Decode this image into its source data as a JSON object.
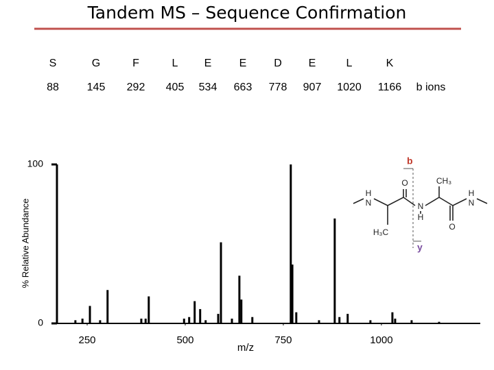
{
  "chart_data": {
    "type": "stem",
    "title": "Tandem MS – Sequence Confirmation",
    "x_label": "m/z",
    "y_label": "% Relative Abundance",
    "xlim": [
      173,
      1252
    ],
    "xticks": [
      250,
      500,
      750,
      1000
    ],
    "ylim": [
      0,
      100
    ],
    "yticks": [
      0,
      100
    ],
    "color": "#000000",
    "x": [
      220,
      238,
      257,
      283,
      302,
      388,
      399,
      407,
      497,
      510,
      524,
      538,
      552,
      584,
      591,
      619,
      638,
      643,
      671,
      769,
      773,
      783,
      841,
      881,
      893,
      914,
      972,
      1028,
      1035,
      1077,
      1147
    ],
    "values": [
      2,
      3,
      11,
      2,
      21,
      3,
      3,
      17,
      3,
      4,
      14,
      9,
      2,
      6,
      51,
      3,
      30,
      15,
      4,
      100,
      37,
      7,
      2,
      66,
      4,
      6,
      2,
      7,
      3,
      2,
      1
    ]
  },
  "sequence": {
    "residues": [
      "S",
      "G",
      "F",
      "L",
      "E",
      "E",
      "D",
      "E",
      "L",
      "K"
    ],
    "b_ions": [
      88,
      145,
      292,
      405,
      534,
      663,
      778,
      907,
      1020,
      1166
    ],
    "b_ions_label": "b ions"
  },
  "structure": {
    "b_label": "b",
    "y_label": "y",
    "atoms": [
      "H",
      "N",
      "O",
      "CH₃",
      "N",
      "H",
      "O",
      "H₃C",
      "H",
      "N"
    ]
  }
}
